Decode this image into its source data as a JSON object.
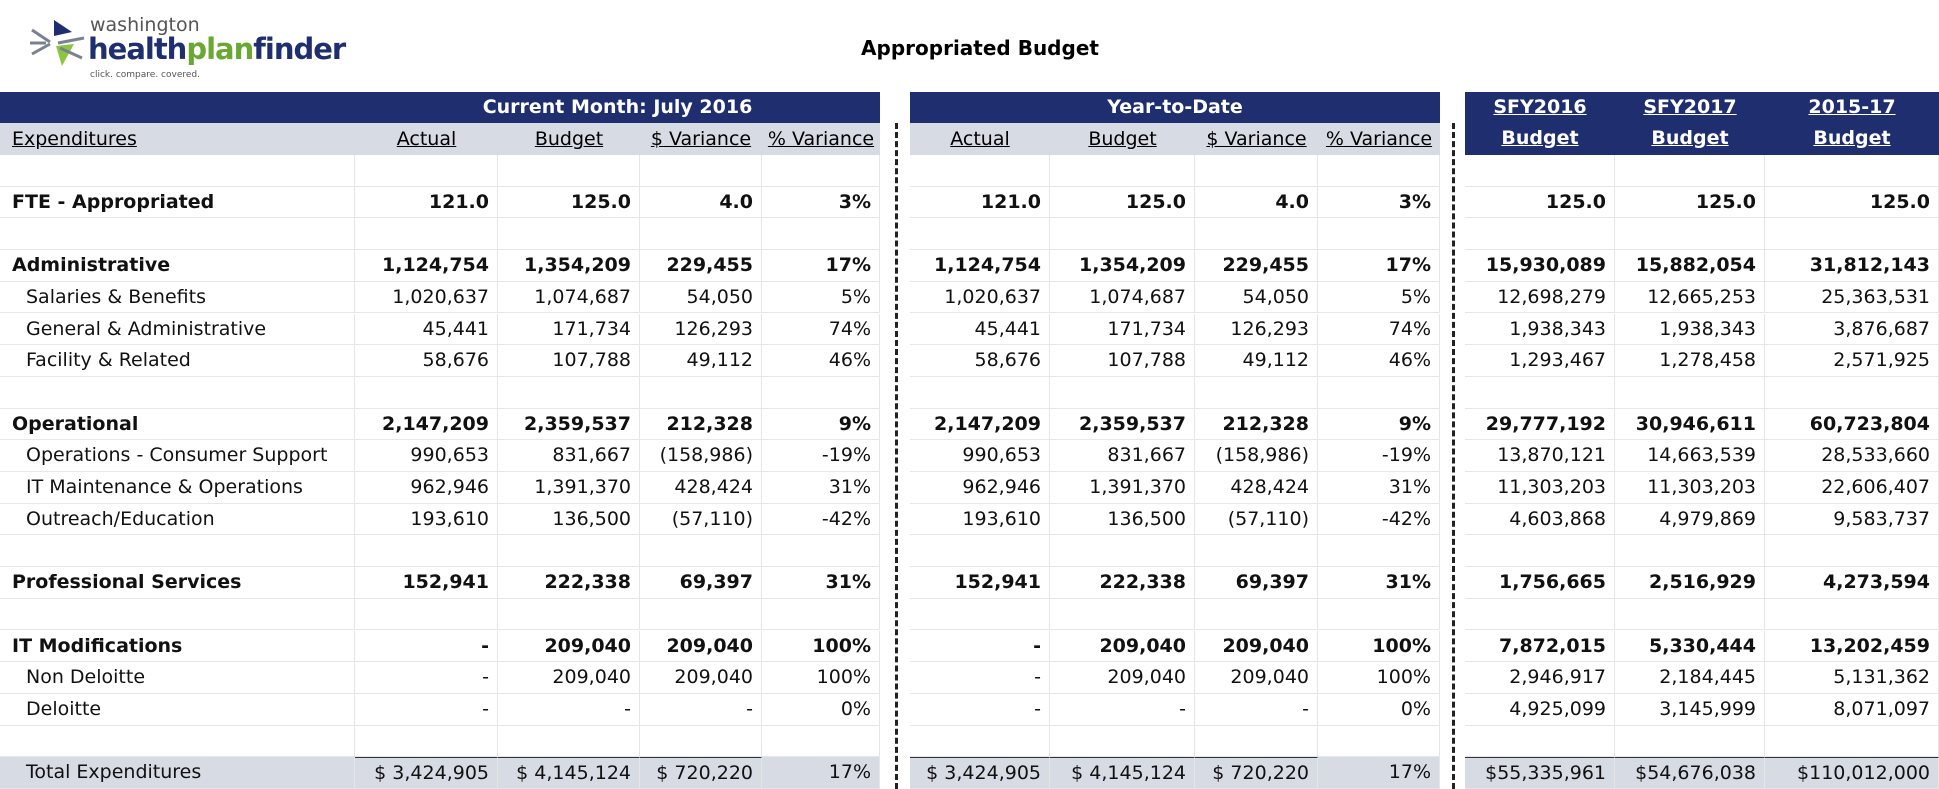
{
  "header": {
    "logo": {
      "top": "washington",
      "parts": [
        "health",
        "plan",
        "finder"
      ],
      "tagline": "click. compare. covered."
    },
    "title": "Appropriated Budget"
  },
  "table": {
    "groups": [
      {
        "title": "Current Month: July 2016",
        "columns": [
          "Actual",
          "Budget",
          "$ Variance",
          "% Variance"
        ]
      },
      {
        "title": "Year-to-Date",
        "columns": [
          "Actual",
          "Budget",
          "$ Variance",
          "% Variance"
        ]
      },
      {
        "columns": [
          [
            "SFY2016",
            "Budget"
          ],
          [
            "SFY2017",
            "Budget"
          ],
          [
            "2015-17",
            "Budget"
          ]
        ]
      }
    ],
    "label_header": "Expenditures",
    "sections": [
      [
        {
          "label": "FTE - Appropriated",
          "cells": [
            "121.0",
            "125.0",
            "4.0",
            "3%",
            "121.0",
            "125.0",
            "4.0",
            "3%",
            "125.0",
            "125.0",
            "125.0"
          ]
        }
      ],
      [
        {
          "label": "Administrative",
          "cells": [
            "1,124,754",
            "1,354,209",
            "229,455",
            "17%",
            "1,124,754",
            "1,354,209",
            "229,455",
            "17%",
            "15,930,089",
            "15,882,054",
            "31,812,143"
          ]
        },
        {
          "label": "Salaries & Benefits",
          "cells": [
            "1,020,637",
            "1,074,687",
            "54,050",
            "5%",
            "1,020,637",
            "1,074,687",
            "54,050",
            "5%",
            "12,698,279",
            "12,665,253",
            "25,363,531"
          ]
        },
        {
          "label": "General & Administrative",
          "cells": [
            "45,441",
            "171,734",
            "126,293",
            "74%",
            "45,441",
            "171,734",
            "126,293",
            "74%",
            "1,938,343",
            "1,938,343",
            "3,876,687"
          ]
        },
        {
          "label": "Facility & Related",
          "cells": [
            "58,676",
            "107,788",
            "49,112",
            "46%",
            "58,676",
            "107,788",
            "49,112",
            "46%",
            "1,293,467",
            "1,278,458",
            "2,571,925"
          ]
        }
      ],
      [
        {
          "label": "Operational",
          "cells": [
            "2,147,209",
            "2,359,537",
            "212,328",
            "9%",
            "2,147,209",
            "2,359,537",
            "212,328",
            "9%",
            "29,777,192",
            "30,946,611",
            "60,723,804"
          ]
        },
        {
          "label": "Operations - Consumer Support",
          "cells": [
            "990,653",
            "831,667",
            "(158,986)",
            "-19%",
            "990,653",
            "831,667",
            "(158,986)",
            "-19%",
            "13,870,121",
            "14,663,539",
            "28,533,660"
          ]
        },
        {
          "label": "IT Maintenance & Operations",
          "cells": [
            "962,946",
            "1,391,370",
            "428,424",
            "31%",
            "962,946",
            "1,391,370",
            "428,424",
            "31%",
            "11,303,203",
            "11,303,203",
            "22,606,407"
          ]
        },
        {
          "label": "Outreach/Education",
          "cells": [
            "193,610",
            "136,500",
            "(57,110)",
            "-42%",
            "193,610",
            "136,500",
            "(57,110)",
            "-42%",
            "4,603,868",
            "4,979,869",
            "9,583,737"
          ]
        }
      ],
      [
        {
          "label": "Professional Services",
          "cells": [
            "152,941",
            "222,338",
            "69,397",
            "31%",
            "152,941",
            "222,338",
            "69,397",
            "31%",
            "1,756,665",
            "2,516,929",
            "4,273,594"
          ]
        }
      ],
      [
        {
          "label": "IT Modifications",
          "cells": [
            "-",
            "209,040",
            "209,040",
            "100%",
            "-",
            "209,040",
            "209,040",
            "100%",
            "7,872,015",
            "5,330,444",
            "13,202,459"
          ]
        },
        {
          "label": "Non Deloitte",
          "cells": [
            "-",
            "209,040",
            "209,040",
            "100%",
            "-",
            "209,040",
            "209,040",
            "100%",
            "2,946,917",
            "2,184,445",
            "5,131,362"
          ]
        },
        {
          "label": "Deloitte",
          "cells": [
            "-",
            "-",
            "-",
            "0%",
            "-",
            "-",
            "-",
            "0%",
            "4,925,099",
            "3,145,999",
            "8,071,097"
          ]
        }
      ],
      [
        {
          "label": "Total Expenditures",
          "cells": [
            "$ 3,424,905",
            "$ 4,145,124",
            "$ 720,220",
            "17%",
            "$ 3,424,905",
            "$ 4,145,124",
            "$ 720,220",
            "17%",
            "$55,335,961",
            "$54,676,038",
            "$110,012,000"
          ]
        }
      ]
    ]
  }
}
